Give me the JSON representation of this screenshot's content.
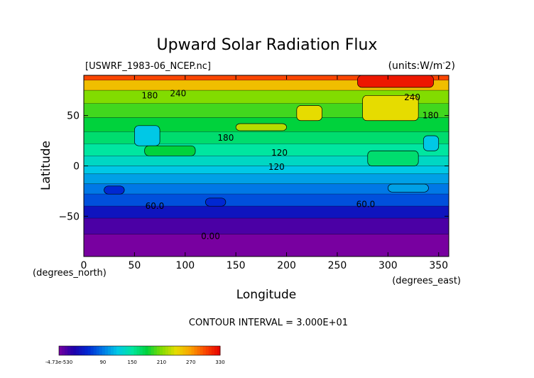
{
  "chart_data": {
    "type": "heatmap",
    "title": "Upward Solar Radiation Flux",
    "subtitle_left": "[USWRF_1983-06_NCEP.nc]",
    "subtitle_right": "(units:W/m^-2)",
    "units_prefix": "(units:W/m",
    "units_suffix": "2)",
    "xlabel": "Longitude",
    "ylabel": "Latitude",
    "x_axis_note": "(degrees_east)",
    "y_axis_note": "(degrees_north)",
    "xlim": [
      0,
      360
    ],
    "ylim": [
      -90,
      90
    ],
    "x_ticks": [
      0,
      50,
      100,
      150,
      200,
      250,
      300,
      350
    ],
    "y_ticks": [
      -50,
      0,
      50
    ],
    "contour_interval_text": "CONTOUR INTERVAL = 3.000E+01",
    "contour_labels": [
      {
        "text": "180",
        "lon": 65,
        "lat": 70
      },
      {
        "text": "240",
        "lon": 93,
        "lat": 72
      },
      {
        "text": "240",
        "lon": 324,
        "lat": 68
      },
      {
        "text": "180",
        "lon": 342,
        "lat": 50
      },
      {
        "text": "180",
        "lon": 140,
        "lat": 28
      },
      {
        "text": "120",
        "lon": 193,
        "lat": 13
      },
      {
        "text": "120",
        "lon": 190,
        "lat": -1
      },
      {
        "text": "60.0",
        "lon": 70,
        "lat": -40
      },
      {
        "text": "60.0",
        "lon": 278,
        "lat": -38
      },
      {
        "text": "0.00",
        "lon": 125,
        "lat": -70
      }
    ],
    "latitude_bands": [
      {
        "lat_top": 90,
        "lat_bottom": 85,
        "value": 300
      },
      {
        "lat_top": 85,
        "lat_bottom": 75,
        "value": 255
      },
      {
        "lat_top": 75,
        "lat_bottom": 62,
        "value": 210
      },
      {
        "lat_top": 62,
        "lat_bottom": 48,
        "value": 195
      },
      {
        "lat_top": 48,
        "lat_bottom": 34,
        "value": 180
      },
      {
        "lat_top": 34,
        "lat_bottom": 22,
        "value": 165
      },
      {
        "lat_top": 22,
        "lat_bottom": 10,
        "value": 150
      },
      {
        "lat_top": 10,
        "lat_bottom": 0,
        "value": 135
      },
      {
        "lat_top": 0,
        "lat_bottom": -8,
        "value": 120
      },
      {
        "lat_top": -8,
        "lat_bottom": -18,
        "value": 105
      },
      {
        "lat_top": -18,
        "lat_bottom": -28,
        "value": 90
      },
      {
        "lat_top": -28,
        "lat_bottom": -40,
        "value": 75
      },
      {
        "lat_top": -40,
        "lat_bottom": -52,
        "value": 45
      },
      {
        "lat_top": -52,
        "lat_bottom": -68,
        "value": 15
      },
      {
        "lat_top": -68,
        "lat_bottom": -90,
        "value": 0
      }
    ],
    "patches": [
      {
        "lon0": 270,
        "lon1": 345,
        "lat0": 78,
        "lat1": 90,
        "value": 320
      },
      {
        "lon0": 210,
        "lon1": 235,
        "lat0": 45,
        "lat1": 60,
        "value": 240
      },
      {
        "lon0": 150,
        "lon1": 200,
        "lat0": 35,
        "lat1": 42,
        "value": 225
      },
      {
        "lon0": 275,
        "lon1": 330,
        "lat0": 45,
        "lat1": 70,
        "value": 240
      },
      {
        "lon0": 50,
        "lon1": 75,
        "lat0": 20,
        "lat1": 40,
        "value": 120
      },
      {
        "lon0": 335,
        "lon1": 350,
        "lat0": 15,
        "lat1": 30,
        "value": 120
      },
      {
        "lon0": 60,
        "lon1": 110,
        "lat0": 10,
        "lat1": 20,
        "value": 180
      },
      {
        "lon0": 280,
        "lon1": 330,
        "lat0": 0,
        "lat1": 15,
        "value": 165
      },
      {
        "lon0": 20,
        "lon1": 40,
        "lat0": -28,
        "lat1": -20,
        "value": 60
      },
      {
        "lon0": 120,
        "lon1": 140,
        "lat0": -40,
        "lat1": -32,
        "value": 60
      },
      {
        "lon0": 300,
        "lon1": 340,
        "lat0": -26,
        "lat1": -18,
        "value": 105
      }
    ],
    "colorbar": {
      "min_label": "-4.73e-530",
      "tick_labels": [
        "90",
        "150",
        "210",
        "270",
        "330"
      ],
      "tick_values": [
        90,
        150,
        210,
        270,
        330
      ],
      "range": [
        0,
        330
      ]
    },
    "grid": false
  }
}
